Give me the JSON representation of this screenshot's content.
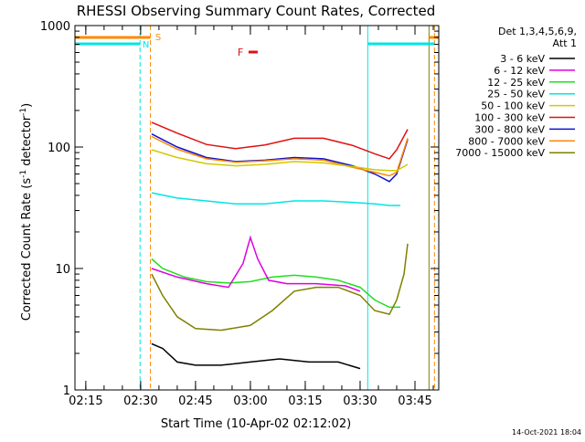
{
  "chart_data": {
    "type": "line",
    "title": "RHESSI Observing Summary Count Rates, Corrected",
    "xlabel": "Start Time (10-Apr-02 02:12:02)",
    "ylabel_main": "Corrected Count Rate (s",
    "ylabel_sup1": "-1",
    "ylabel_mid": " detector",
    "ylabel_sup2": "-1",
    "ylabel_end": ")",
    "xlim": [
      "02:12:02",
      "03:51:30"
    ],
    "ylim": [
      1,
      1000
    ],
    "yscale": "log",
    "x_ticks": [
      "02:15",
      "02:30",
      "02:45",
      "03:00",
      "03:15",
      "03:30",
      "03:45"
    ],
    "y_ticks": [
      "1",
      "10",
      "100",
      "1000"
    ],
    "legend": {
      "placement": "right",
      "header1": "Det 1,3,4,5,6,9,",
      "header2": "Att 1",
      "entries": [
        {
          "label": "3 - 6 keV",
          "color": "#000000"
        },
        {
          "label": "6 - 12 keV",
          "color": "#e000e0"
        },
        {
          "label": "12 - 25 keV",
          "color": "#22dd22"
        },
        {
          "label": "25 - 50 keV",
          "color": "#00e5e5"
        },
        {
          "label": "50 - 100 keV",
          "color": "#d4c800"
        },
        {
          "label": "100 - 300 keV",
          "color": "#e01010"
        },
        {
          "label": "300 - 800 keV",
          "color": "#1010d0"
        },
        {
          "label": "800 - 7000 keV",
          "color": "#ff8800"
        },
        {
          "label": "7000 - 15000 keV",
          "color": "#808000"
        }
      ]
    },
    "series": [
      {
        "name": "100 - 300 keV",
        "color": "#e01010",
        "x": [
          "02:33",
          "02:40",
          "02:48",
          "02:56",
          "03:04",
          "03:12",
          "03:20",
          "03:28",
          "03:34",
          "03:38",
          "03:40",
          "03:43"
        ],
        "y": [
          160,
          130,
          105,
          97,
          104,
          118,
          118,
          103,
          88,
          80,
          95,
          140
        ]
      },
      {
        "name": "300 - 800 keV",
        "color": "#1010d0",
        "x": [
          "02:33",
          "02:40",
          "02:48",
          "02:56",
          "03:04",
          "03:12",
          "03:20",
          "03:28",
          "03:34",
          "03:38",
          "03:40",
          "03:43"
        ],
        "y": [
          128,
          100,
          82,
          76,
          78,
          82,
          80,
          70,
          60,
          52,
          60,
          115
        ]
      },
      {
        "name": "800 - 7000 keV",
        "color": "#ff8800",
        "x": [
          "02:33",
          "02:40",
          "02:48",
          "02:56",
          "03:04",
          "03:12",
          "03:20",
          "03:28",
          "03:34",
          "03:38",
          "03:40",
          "03:43"
        ],
        "y": [
          122,
          96,
          80,
          75,
          77,
          80,
          78,
          68,
          62,
          58,
          62,
          118
        ]
      },
      {
        "name": "50 - 100 keV",
        "color": "#d4c800",
        "x": [
          "02:33",
          "02:40",
          "02:48",
          "02:56",
          "03:04",
          "03:12",
          "03:20",
          "03:28",
          "03:34",
          "03:38",
          "03:40",
          "03:43"
        ],
        "y": [
          95,
          82,
          73,
          70,
          72,
          76,
          74,
          69,
          65,
          64,
          64,
          72
        ]
      },
      {
        "name": "25 - 50 keV",
        "color": "#00e5e5",
        "x": [
          "02:33",
          "02:40",
          "02:48",
          "02:56",
          "03:04",
          "03:12",
          "03:20",
          "03:28",
          "03:34",
          "03:38",
          "03:41"
        ],
        "y": [
          42,
          38,
          36,
          34,
          34,
          36,
          36,
          35,
          34,
          33,
          33
        ]
      },
      {
        "name": "12 - 25 keV",
        "color": "#22dd22",
        "x": [
          "02:33",
          "02:36",
          "02:42",
          "02:48",
          "02:54",
          "03:00",
          "03:06",
          "03:12",
          "03:18",
          "03:24",
          "03:30",
          "03:34",
          "03:38",
          "03:41"
        ],
        "y": [
          12,
          10,
          8.5,
          7.8,
          7.6,
          7.8,
          8.5,
          8.8,
          8.5,
          8,
          7,
          5.5,
          4.8,
          4.8
        ]
      },
      {
        "name": "6 - 12 keV",
        "color": "#e000e0",
        "x": [
          "02:33",
          "02:40",
          "02:48",
          "02:54",
          "02:58",
          "03:00",
          "03:02",
          "03:05",
          "03:10",
          "03:18",
          "03:26",
          "03:30"
        ],
        "y": [
          10,
          8.5,
          7.5,
          7,
          11,
          18,
          12,
          8,
          7.5,
          7.5,
          7.2,
          6.5
        ]
      },
      {
        "name": "7000 - 15000 keV",
        "color": "#808000",
        "x": [
          "02:33",
          "02:36",
          "02:40",
          "02:45",
          "02:52",
          "03:00",
          "03:06",
          "03:12",
          "03:18",
          "03:24",
          "03:30",
          "03:34",
          "03:38",
          "03:40",
          "03:42",
          "03:43"
        ],
        "y": [
          9,
          6,
          4,
          3.2,
          3.1,
          3.4,
          4.5,
          6.5,
          7,
          7,
          6,
          4.5,
          4.2,
          5.5,
          9,
          16
        ]
      },
      {
        "name": "3 - 6 keV",
        "color": "#000000",
        "x": [
          "02:33",
          "02:36",
          "02:40",
          "02:45",
          "02:52",
          "03:00",
          "03:08",
          "03:16",
          "03:24",
          "03:30"
        ],
        "y": [
          2.4,
          2.2,
          1.7,
          1.6,
          1.6,
          1.7,
          1.8,
          1.7,
          1.7,
          1.5
        ]
      }
    ],
    "markers": [
      {
        "label": "S",
        "color": "#ff8800",
        "time": "02:33"
      },
      {
        "label": "N",
        "color": "#00e5e5",
        "time": "02:30"
      },
      {
        "label": "F",
        "color": "#e01010",
        "time": "02:57"
      }
    ],
    "footer_date": "14-Oct-2021 18:04"
  }
}
